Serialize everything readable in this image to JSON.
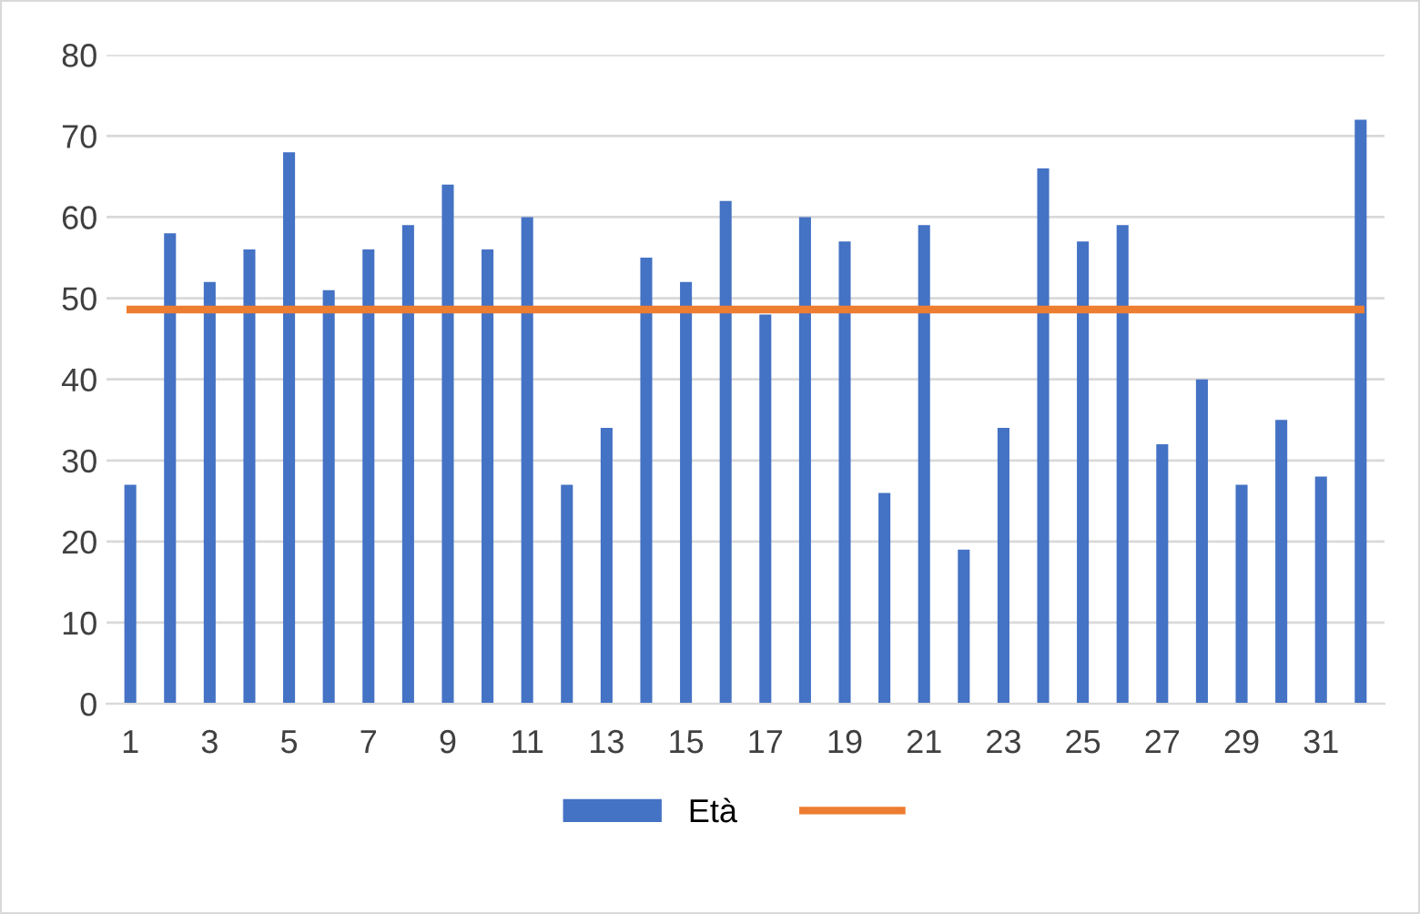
{
  "chart_data": {
    "type": "bar",
    "categories": [
      "1",
      null,
      "3",
      null,
      "5",
      null,
      "7",
      null,
      "9",
      null,
      "11",
      null,
      "13",
      null,
      "15",
      null,
      "17",
      null,
      "19",
      null,
      "21",
      null,
      "23",
      null,
      "25",
      null,
      "27",
      null,
      "29",
      null,
      "31",
      null
    ],
    "series": [
      {
        "name": "Età",
        "color": "#4472c4",
        "values": [
          27,
          58,
          52,
          56,
          68,
          51,
          56,
          59,
          64,
          56,
          60,
          27,
          34,
          55,
          52,
          62,
          48,
          60,
          57,
          26,
          59,
          19,
          34,
          66,
          57,
          59,
          32,
          40,
          27,
          35,
          28,
          72
        ]
      },
      {
        "type": "line",
        "color": "#ed7d31",
        "values": [
          48.6,
          48.6,
          48.6,
          48.6,
          48.6,
          48.6,
          48.6,
          48.6,
          48.6,
          48.6,
          48.6,
          48.6,
          48.6,
          48.6,
          48.6,
          48.6,
          48.6,
          48.6,
          48.6,
          48.6,
          48.6,
          48.6,
          48.6,
          48.6,
          48.6,
          48.6,
          48.6,
          48.6,
          48.6,
          48.6,
          48.6,
          48.6
        ]
      }
    ],
    "ylim": [
      0,
      80
    ],
    "yticks": [
      0,
      10,
      20,
      30,
      40,
      50,
      60,
      70,
      80
    ],
    "grid": "y",
    "legend": "bottom"
  }
}
